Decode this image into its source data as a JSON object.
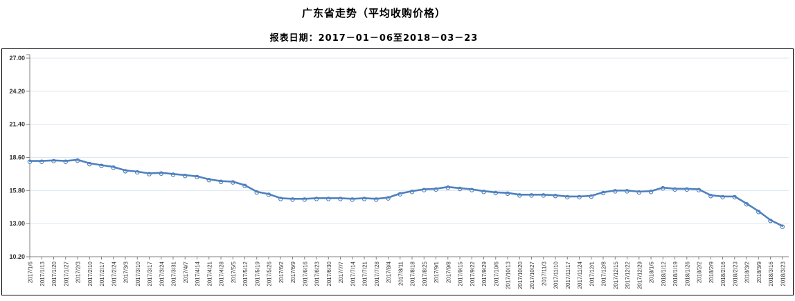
{
  "header": {
    "title": "广东省走势（平均收购价格）",
    "subtitle": "报表日期：2017－01－06至2018－03－23"
  },
  "chart_data": {
    "type": "line",
    "title": "广东省走势（平均收购价格）",
    "subtitle": "报表日期：2017－01－06至2018－03－23",
    "series_name": "平均收购价格",
    "categories": [
      "2017/1/6",
      "2017/1/13",
      "2017/1/20",
      "2017/1/27",
      "2017/2/3",
      "2017/2/10",
      "2017/2/17",
      "2017/2/24",
      "2017/3/3",
      "2017/3/10",
      "2017/3/17",
      "2017/3/24",
      "2017/3/31",
      "2017/4/7",
      "2017/4/14",
      "2017/4/21",
      "2017/4/28",
      "2017/5/5",
      "2017/5/12",
      "2017/5/19",
      "2017/5/26",
      "2017/6/2",
      "2017/6/9",
      "2017/6/16",
      "2017/6/23",
      "2017/6/30",
      "2017/7/7",
      "2017/7/14",
      "2017/7/21",
      "2017/7/28",
      "2017/8/4",
      "2017/8/11",
      "2017/8/18",
      "2017/8/25",
      "2017/9/1",
      "2017/9/8",
      "2017/9/15",
      "2017/9/22",
      "2017/9/29",
      "2017/10/6",
      "2017/10/13",
      "2017/10/20",
      "2017/10/27",
      "2017/11/3",
      "2017/11/10",
      "2017/11/17",
      "2017/11/24",
      "2017/12/1",
      "2017/12/8",
      "2017/12/15",
      "2017/12/22",
      "2017/12/29",
      "2018/1/5",
      "2018/1/12",
      "2018/1/19",
      "2018/1/26",
      "2018/2/2",
      "2018/2/9",
      "2018/2/16",
      "2018/2/23",
      "2018/3/2",
      "2018/3/9",
      "2018/3/16",
      "2018/3/23"
    ],
    "values": [
      18.3,
      18.3,
      18.35,
      18.3,
      18.4,
      18.1,
      17.95,
      17.8,
      17.5,
      17.4,
      17.25,
      17.3,
      17.2,
      17.1,
      17.0,
      16.75,
      16.6,
      16.55,
      16.25,
      15.7,
      15.5,
      15.15,
      15.1,
      15.1,
      15.15,
      15.15,
      15.15,
      15.1,
      15.15,
      15.1,
      15.2,
      15.55,
      15.75,
      15.9,
      15.95,
      16.1,
      16.0,
      15.9,
      15.75,
      15.65,
      15.6,
      15.45,
      15.45,
      15.45,
      15.4,
      15.3,
      15.3,
      15.35,
      15.65,
      15.8,
      15.8,
      15.7,
      15.75,
      16.05,
      15.95,
      15.95,
      15.9,
      15.4,
      15.3,
      15.3,
      14.7,
      14.05,
      13.3,
      12.8
    ],
    "ylim": [
      10.2,
      27.0
    ],
    "yticks": [
      27.0,
      24.2,
      21.4,
      18.6,
      15.8,
      13.0,
      10.2
    ],
    "xlabel": "",
    "ylabel": "",
    "grid": true,
    "legend": "none",
    "colors": {
      "line": "#4f81bd",
      "marker_fill": "#ffffff",
      "gridline": "#dce6f1",
      "axis": "#808080",
      "tick_label": "#333333",
      "box_border": "#000000"
    }
  }
}
